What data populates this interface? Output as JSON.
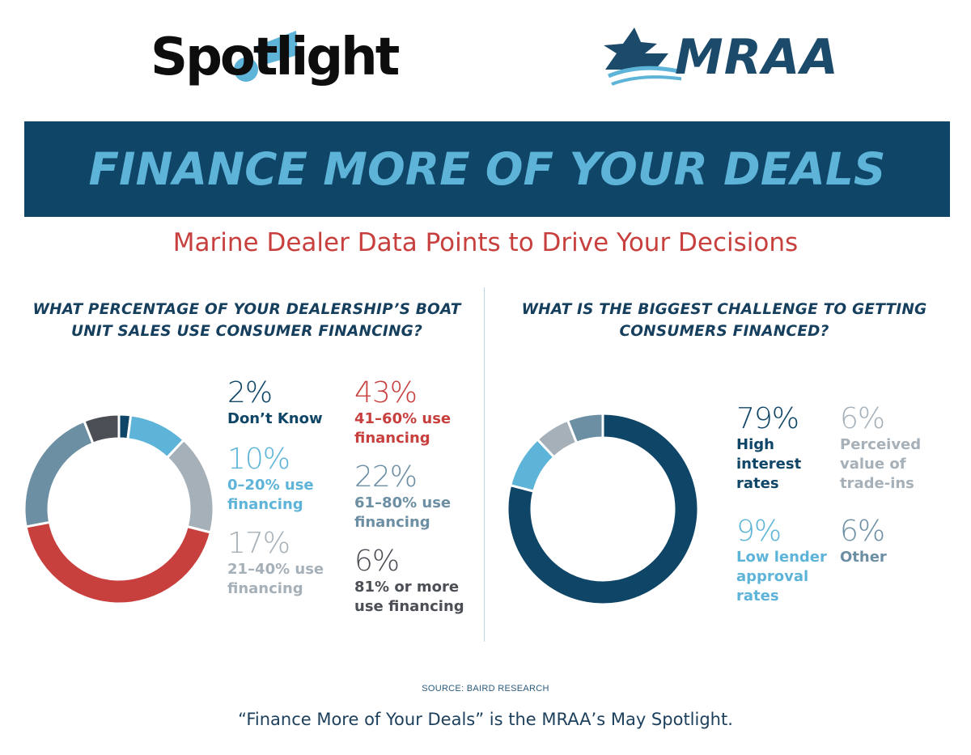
{
  "logos": {
    "spotlight": "Spotlight",
    "mraa": "MRAA"
  },
  "banner": {
    "title": "FINANCE MORE OF YOUR DEALS"
  },
  "subtitle": "Marine Dealer Data Points to Drive Your Decisions",
  "source": "SOURCE: BAIRD RESEARCH",
  "footer": "“Finance More of Your Deals” is the MRAA’s May Spotlight.",
  "chart_data": [
    {
      "type": "pie",
      "title": "WHAT PERCENTAGE OF YOUR DEALERSHIP’S BOAT UNIT SALES USE CONSUMER FINANCING?",
      "donut": true,
      "slices": [
        {
          "pct": "2%",
          "value": 2,
          "label": "Don’t Know",
          "color": "#0f4566"
        },
        {
          "pct": "10%",
          "value": 10,
          "label": "0–20% use\nfinancing",
          "color": "#5db4d8"
        },
        {
          "pct": "17%",
          "value": 17,
          "label": "21–40% use\nfinancing",
          "color": "#a6b0b8"
        },
        {
          "pct": "43%",
          "value": 43,
          "label": "41–60% use\nfinancing",
          "color": "#c7403e"
        },
        {
          "pct": "22%",
          "value": 22,
          "label": "61–80% use\nfinancing",
          "color": "#6d8fa4"
        },
        {
          "pct": "6%",
          "value": 6,
          "label": "81% or more\nuse financing",
          "color": "#4b4f55"
        }
      ]
    },
    {
      "type": "pie",
      "title": "WHAT IS THE BIGGEST CHALLENGE TO GETTING CONSUMERS FINANCED?",
      "donut": true,
      "slices": [
        {
          "pct": "79%",
          "value": 79,
          "label": "High\ninterest\nrates",
          "color": "#0f4566"
        },
        {
          "pct": "9%",
          "value": 9,
          "label": "Low lender\napproval\nrates",
          "color": "#5db4d8"
        },
        {
          "pct": "6%",
          "value": 6,
          "label": "Perceived\nvalue of\ntrade-ins",
          "color": "#a6b0b8"
        },
        {
          "pct": "6%",
          "value": 6,
          "label": "Other",
          "color": "#6d8fa4"
        }
      ]
    }
  ]
}
